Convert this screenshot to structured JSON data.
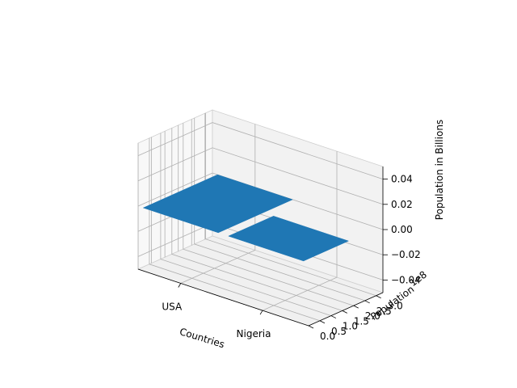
{
  "chart_data": {
    "type": "bar3d",
    "projection": "3d",
    "categories": [
      "USA",
      "Nigeria"
    ],
    "x_axis": {
      "label": "Countries",
      "tick_labels": [
        "USA",
        "Nigeria"
      ]
    },
    "y_axis": {
      "label": "Population",
      "offset_text": "1e8",
      "ticks": [
        "0.0",
        "0.5",
        "1.0",
        "1.5",
        "2.0",
        "2.5",
        "3.0"
      ],
      "range": [
        0,
        3.3
      ]
    },
    "z_axis": {
      "label": "Population in Billions",
      "ticks": [
        "−0.04",
        "−0.02",
        "0.00",
        "0.02",
        "0.04"
      ],
      "range": [
        -0.05,
        0.05
      ]
    },
    "bars": [
      {
        "category": "USA",
        "y_from": 0.0,
        "y_to": 3.3,
        "z": 0.0
      },
      {
        "category": "Nigeria",
        "y_from": 0.0,
        "y_to": 2.0,
        "z": 0.0
      }
    ],
    "grid": true,
    "colors": {
      "bar": "#1f77b4",
      "pane": "#f2f2f2",
      "pane_side": "#f8f8f8",
      "pane_floor": "#f0f0f0",
      "grid": "#b0b0b0",
      "pane_edge": "#cfcfcf"
    }
  }
}
